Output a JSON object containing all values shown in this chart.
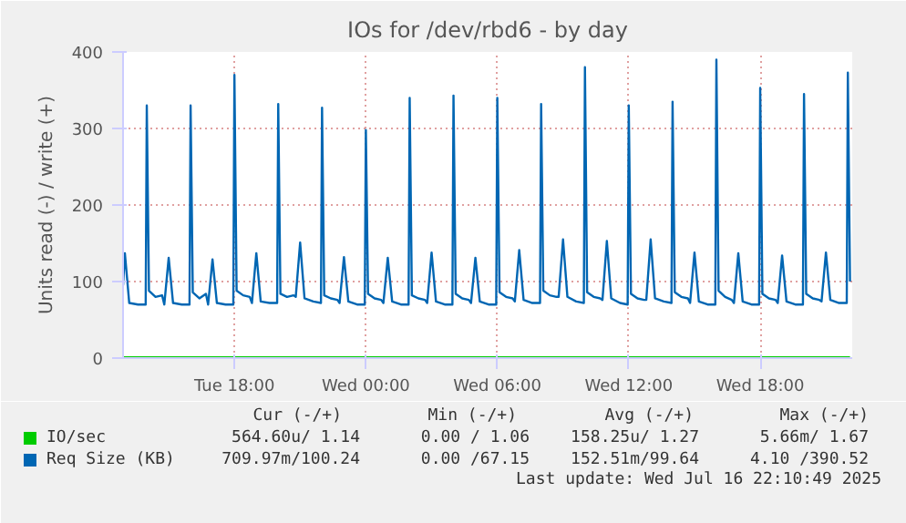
{
  "chart_data": {
    "type": "line",
    "title": "IOs for /dev/rbd6 - by day",
    "ylabel": "Units read (-) / write (+)",
    "xlim": [
      "2025-07-15T12:55",
      "2025-07-16T22:12"
    ],
    "ylim": [
      0,
      400
    ],
    "xticks": [
      {
        "value": "2025-07-15T18:00",
        "label": "Tue 18:00"
      },
      {
        "value": "2025-07-16T00:00",
        "label": "Wed 00:00"
      },
      {
        "value": "2025-07-16T06:00",
        "label": "Wed 06:00"
      },
      {
        "value": "2025-07-16T12:00",
        "label": "Wed 12:00"
      },
      {
        "value": "2025-07-16T18:00",
        "label": "Wed 18:00"
      }
    ],
    "yticks": [
      0,
      100,
      200,
      300,
      400
    ],
    "grid": true,
    "legend": "bottom left",
    "marker": "none",
    "line_style": "solid",
    "series": [
      {
        "name": "IO/sec",
        "color": "#00cc00",
        "x": [
          "2025-07-15T12:55",
          "2025-07-16T22:06"
        ],
        "values": [
          1,
          1
        ]
      },
      {
        "name": "Req Size (KB)",
        "color": "#0066b3",
        "x": [
          "2025-07-15T12:55",
          "2025-07-15T13:00",
          "2025-07-15T13:12",
          "2025-07-15T13:36",
          "2025-07-15T13:57",
          "2025-07-15T14:00",
          "2025-07-15T14:06",
          "2025-07-15T14:24",
          "2025-07-15T14:42",
          "2025-07-15T14:48",
          "2025-07-15T15:00",
          "2025-07-15T15:12",
          "2025-07-15T15:36",
          "2025-07-15T15:57",
          "2025-07-15T16:00",
          "2025-07-15T16:06",
          "2025-07-15T16:24",
          "2025-07-15T16:42",
          "2025-07-15T16:48",
          "2025-07-15T17:00",
          "2025-07-15T17:12",
          "2025-07-15T17:36",
          "2025-07-15T17:57",
          "2025-07-15T18:00",
          "2025-07-15T18:06",
          "2025-07-15T18:24",
          "2025-07-15T18:42",
          "2025-07-15T18:48",
          "2025-07-15T19:00",
          "2025-07-15T19:12",
          "2025-07-15T19:36",
          "2025-07-15T19:57",
          "2025-07-15T20:00",
          "2025-07-15T20:06",
          "2025-07-15T20:24",
          "2025-07-15T20:42",
          "2025-07-15T20:48",
          "2025-07-15T21:00",
          "2025-07-15T21:12",
          "2025-07-15T21:36",
          "2025-07-15T21:57",
          "2025-07-15T22:00",
          "2025-07-15T22:06",
          "2025-07-15T22:24",
          "2025-07-15T22:42",
          "2025-07-15T22:48",
          "2025-07-15T23:00",
          "2025-07-15T23:12",
          "2025-07-15T23:36",
          "2025-07-15T23:57",
          "2025-07-16T00:00",
          "2025-07-16T00:06",
          "2025-07-16T00:24",
          "2025-07-16T00:42",
          "2025-07-16T00:48",
          "2025-07-16T01:00",
          "2025-07-16T01:12",
          "2025-07-16T01:36",
          "2025-07-16T01:57",
          "2025-07-16T02:00",
          "2025-07-16T02:06",
          "2025-07-16T02:24",
          "2025-07-16T02:42",
          "2025-07-16T02:48",
          "2025-07-16T03:00",
          "2025-07-16T03:12",
          "2025-07-16T03:36",
          "2025-07-16T03:57",
          "2025-07-16T04:00",
          "2025-07-16T04:06",
          "2025-07-16T04:24",
          "2025-07-16T04:42",
          "2025-07-16T04:48",
          "2025-07-16T05:00",
          "2025-07-16T05:12",
          "2025-07-16T05:36",
          "2025-07-16T05:57",
          "2025-07-16T06:00",
          "2025-07-16T06:06",
          "2025-07-16T06:24",
          "2025-07-16T06:42",
          "2025-07-16T06:48",
          "2025-07-16T07:00",
          "2025-07-16T07:12",
          "2025-07-16T07:36",
          "2025-07-16T07:57",
          "2025-07-16T08:00",
          "2025-07-16T08:06",
          "2025-07-16T08:24",
          "2025-07-16T08:42",
          "2025-07-16T08:48",
          "2025-07-16T09:00",
          "2025-07-16T09:12",
          "2025-07-16T09:36",
          "2025-07-16T09:57",
          "2025-07-16T10:00",
          "2025-07-16T10:06",
          "2025-07-16T10:24",
          "2025-07-16T10:42",
          "2025-07-16T10:48",
          "2025-07-16T11:00",
          "2025-07-16T11:12",
          "2025-07-16T11:36",
          "2025-07-16T11:57",
          "2025-07-16T12:00",
          "2025-07-16T12:06",
          "2025-07-16T12:24",
          "2025-07-16T12:42",
          "2025-07-16T12:48",
          "2025-07-16T13:00",
          "2025-07-16T13:12",
          "2025-07-16T13:36",
          "2025-07-16T13:57",
          "2025-07-16T14:00",
          "2025-07-16T14:06",
          "2025-07-16T14:24",
          "2025-07-16T14:42",
          "2025-07-16T14:48",
          "2025-07-16T15:00",
          "2025-07-16T15:12",
          "2025-07-16T15:36",
          "2025-07-16T15:57",
          "2025-07-16T16:00",
          "2025-07-16T16:06",
          "2025-07-16T16:24",
          "2025-07-16T16:42",
          "2025-07-16T16:48",
          "2025-07-16T17:00",
          "2025-07-16T17:12",
          "2025-07-16T17:36",
          "2025-07-16T17:57",
          "2025-07-16T18:00",
          "2025-07-16T18:06",
          "2025-07-16T18:24",
          "2025-07-16T18:42",
          "2025-07-16T18:48",
          "2025-07-16T19:00",
          "2025-07-16T19:12",
          "2025-07-16T19:36",
          "2025-07-16T19:57",
          "2025-07-16T20:00",
          "2025-07-16T20:06",
          "2025-07-16T20:24",
          "2025-07-16T20:42",
          "2025-07-16T20:48",
          "2025-07-16T21:00",
          "2025-07-16T21:12",
          "2025-07-16T21:36",
          "2025-07-16T21:57",
          "2025-07-16T22:00",
          "2025-07-16T22:06"
        ],
        "values": [
          95,
          137,
          72,
          70,
          70,
          330,
          88,
          80,
          82,
          70,
          131,
          72,
          70,
          70,
          330,
          86,
          78,
          84,
          70,
          129,
          72,
          70,
          70,
          370,
          88,
          82,
          80,
          72,
          137,
          74,
          72,
          72,
          332,
          84,
          80,
          82,
          80,
          151,
          78,
          74,
          72,
          327,
          82,
          78,
          76,
          72,
          132,
          74,
          70,
          70,
          298,
          84,
          78,
          76,
          72,
          131,
          74,
          70,
          70,
          340,
          82,
          78,
          76,
          72,
          138,
          74,
          70,
          70,
          343,
          84,
          78,
          76,
          72,
          131,
          74,
          70,
          70,
          340,
          86,
          80,
          78,
          74,
          141,
          76,
          72,
          72,
          332,
          88,
          82,
          80,
          80,
          155,
          80,
          74,
          72,
          380,
          86,
          80,
          78,
          76,
          153,
          78,
          72,
          70,
          330,
          84,
          78,
          76,
          76,
          155,
          78,
          74,
          72,
          335,
          86,
          80,
          78,
          72,
          138,
          74,
          70,
          70,
          390,
          88,
          80,
          76,
          72,
          137,
          74,
          70,
          70,
          353,
          84,
          78,
          76,
          72,
          134,
          74,
          70,
          70,
          345,
          84,
          78,
          76,
          74,
          138,
          76,
          72,
          72,
          373,
          100
        ]
      }
    ],
    "annotations": [
      "Cur (-/+)",
      "Min (-/+)",
      "Avg (-/+)",
      "Max (-/+)",
      "564.60u/ 1.14",
      "0.00 / 1.06",
      "158.25u/ 1.27",
      "5.66m/ 1.67",
      "709.97m/100.24",
      "0.00 /67.15",
      "152.51m/99.64",
      "4.10 /390.52",
      "Last update: Wed Jul 16 22:10:49 2025"
    ]
  }
}
